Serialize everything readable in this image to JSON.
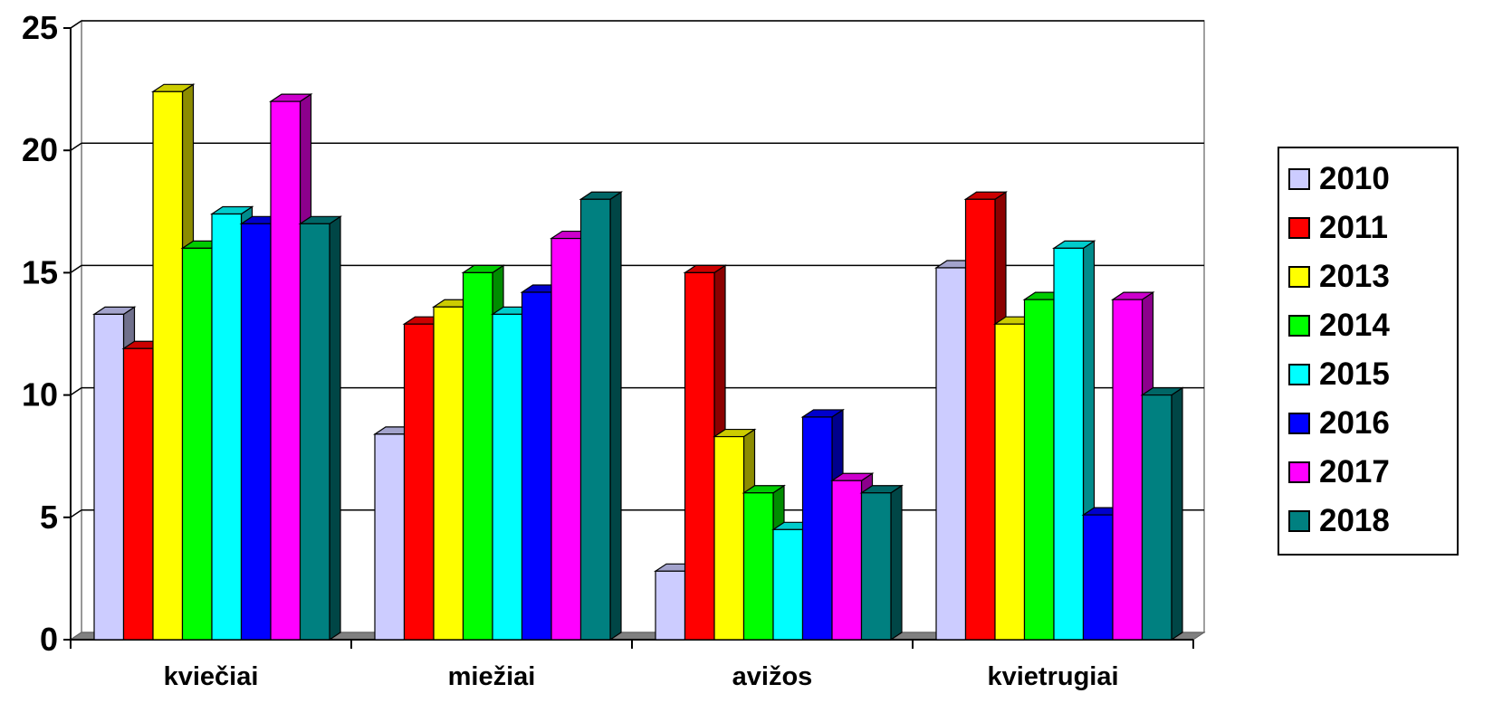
{
  "chart_data": {
    "type": "bar",
    "title": "",
    "xlabel": "",
    "ylabel": "",
    "ylim": [
      0,
      25
    ],
    "yticks": [
      0,
      5,
      10,
      15,
      20,
      25
    ],
    "grid": true,
    "legend_position": "right",
    "categories": [
      "kviečiai",
      "miežiai",
      "avižos",
      "kvietrugiai"
    ],
    "series": [
      {
        "name": "2010",
        "color": "#ccccff",
        "values": [
          13.3,
          8.4,
          2.8,
          15.2
        ]
      },
      {
        "name": "2011",
        "color": "#ff0000",
        "values": [
          11.9,
          12.9,
          15.0,
          18.0
        ]
      },
      {
        "name": "2013",
        "color": "#ffff00",
        "values": [
          22.4,
          13.6,
          8.3,
          12.9
        ]
      },
      {
        "name": "2014",
        "color": "#00ff00",
        "values": [
          16.0,
          15.0,
          6.0,
          13.9
        ]
      },
      {
        "name": "2015",
        "color": "#00ffff",
        "values": [
          17.4,
          13.3,
          4.5,
          16.0
        ]
      },
      {
        "name": "2016",
        "color": "#0000ff",
        "values": [
          17.0,
          14.2,
          9.1,
          5.1
        ]
      },
      {
        "name": "2017",
        "color": "#ff00ff",
        "values": [
          22.0,
          16.4,
          6.5,
          13.9
        ]
      },
      {
        "name": "2018",
        "color": "#008080",
        "values": [
          17.0,
          18.0,
          6.0,
          10.0
        ]
      }
    ]
  }
}
